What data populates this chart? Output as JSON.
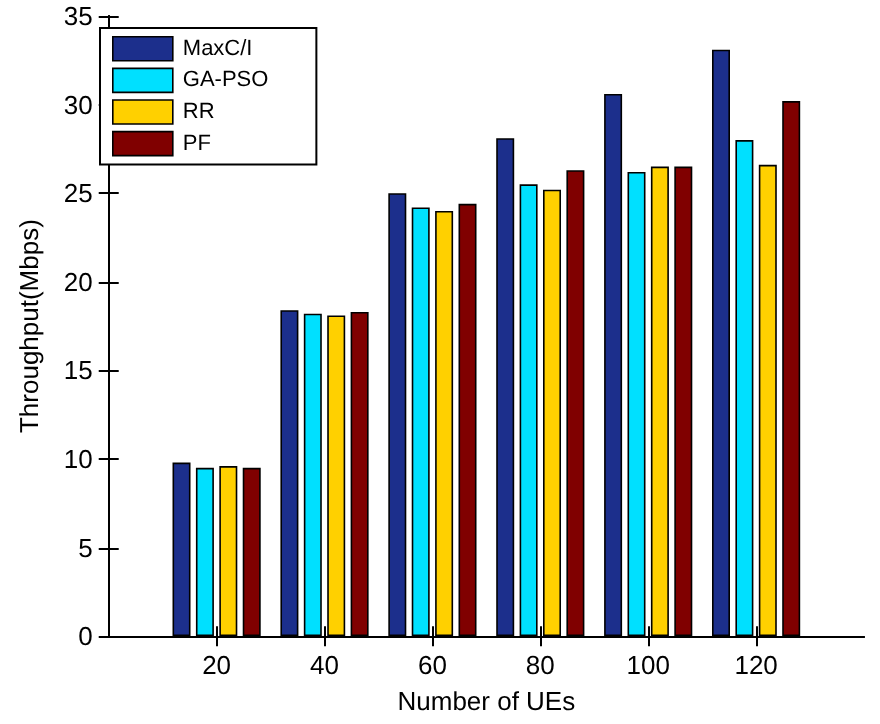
{
  "chart_data": {
    "type": "bar",
    "xlabel": "Number of UEs",
    "ylabel": "Throughput(Mbps)",
    "x": [
      20,
      40,
      60,
      80,
      100,
      120
    ],
    "xlim": [
      0,
      140
    ],
    "xticks": [
      20,
      40,
      60,
      80,
      100,
      120
    ],
    "ylim": [
      0,
      35
    ],
    "yticks": [
      0,
      5,
      10,
      15,
      20,
      25,
      30,
      35
    ],
    "grid": false,
    "legend": "top left",
    "series": [
      {
        "name": "MaxC/I",
        "color": "#1c2f8c",
        "values": [
          9.8,
          18.4,
          25.0,
          28.1,
          30.6,
          33.1
        ]
      },
      {
        "name": "GA-PSO",
        "color": "#00e0ff",
        "values": [
          9.5,
          18.2,
          24.2,
          25.5,
          26.2,
          28.0
        ]
      },
      {
        "name": "RR",
        "color": "#ffd000",
        "values": [
          9.6,
          18.1,
          24.0,
          25.2,
          26.5,
          26.6
        ]
      },
      {
        "name": "PF",
        "color": "#800000",
        "values": [
          9.5,
          18.3,
          24.4,
          26.3,
          26.5,
          30.2
        ]
      }
    ]
  }
}
